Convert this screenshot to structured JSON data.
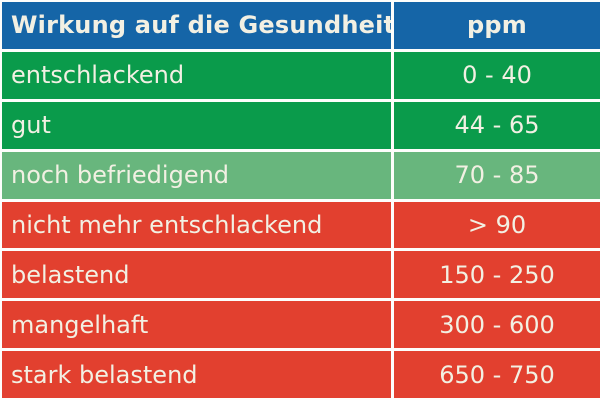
{
  "header": {
    "effect_label": "Wirkung auf die Gesundheit",
    "ppm_label": "ppm"
  },
  "rows": [
    {
      "label": "entschlackend",
      "value": "0 - 40",
      "status": "good"
    },
    {
      "label": "gut",
      "value": "44 - 65",
      "status": "good"
    },
    {
      "label": "noch befriedigend",
      "value": "70 - 85",
      "status": "fair"
    },
    {
      "label": "nicht mehr entschlackend",
      "value": "> 90",
      "status": "bad"
    },
    {
      "label": "belastend",
      "value": "150 - 250",
      "status": "bad"
    },
    {
      "label": "mangelhaft",
      "value": "300 - 600",
      "status": "bad"
    },
    {
      "label": "stark belastend",
      "value": "650 - 750",
      "status": "bad"
    }
  ],
  "colors": {
    "header_bg": "#1565A7",
    "good": "#0A9B4B",
    "fair": "#68B67D",
    "bad": "#E2402F",
    "text": "#F2F0E3",
    "divider": "#FDFDFB"
  },
  "chart_data": {
    "type": "table",
    "title": "Wirkung auf die Gesundheit",
    "columns": [
      "Wirkung auf die Gesundheit",
      "ppm"
    ],
    "rows": [
      [
        "entschlackend",
        "0 - 40"
      ],
      [
        "gut",
        "44 - 65"
      ],
      [
        "noch befriedigend",
        "70 - 85"
      ],
      [
        "nicht mehr entschlackend",
        "> 90"
      ],
      [
        "belastend",
        "150 - 250"
      ],
      [
        "mangelhaft",
        "300 - 600"
      ],
      [
        "stark belastend",
        "650 - 750"
      ]
    ],
    "row_status_colors": [
      "green",
      "green",
      "light-green",
      "red",
      "red",
      "red",
      "red"
    ],
    "legend_meaning": "green = good range, light-green = still satisfactory, red = harmful range"
  }
}
